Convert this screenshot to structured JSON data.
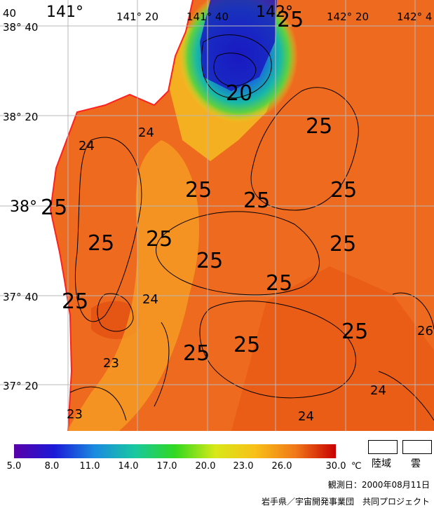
{
  "map": {
    "lon_labels": [
      "141°",
      "141° 20",
      "141° 40",
      "142°",
      "142° 20",
      "142° 4"
    ],
    "lon_left_fragment": "40",
    "lat_labels": [
      "38° 40",
      "38° 20",
      "38°",
      "37° 40",
      "37° 20"
    ],
    "contour_labels": [
      {
        "text": "25",
        "big": true
      },
      {
        "text": "20",
        "big": true
      },
      {
        "text": "25",
        "big": true
      },
      {
        "text": "24",
        "big": false
      },
      {
        "text": "24",
        "big": false
      },
      {
        "text": "25",
        "big": true
      },
      {
        "text": "25",
        "big": true
      },
      {
        "text": "25",
        "big": true
      },
      {
        "text": "25",
        "big": true
      },
      {
        "text": "25",
        "big": true
      },
      {
        "text": "25",
        "big": true
      },
      {
        "text": "25",
        "big": true
      },
      {
        "text": "25",
        "big": true
      },
      {
        "text": "25",
        "big": true
      },
      {
        "text": "25",
        "big": true
      },
      {
        "text": "25",
        "big": true
      },
      {
        "text": "24",
        "big": false
      },
      {
        "text": "25",
        "big": true
      },
      {
        "text": "25",
        "big": true
      },
      {
        "text": "26",
        "big": false
      },
      {
        "text": "23",
        "big": false
      },
      {
        "text": "24",
        "big": false
      },
      {
        "text": "23",
        "big": false
      },
      {
        "text": "24",
        "big": false
      }
    ],
    "colors": {
      "ocean": "#ee6a1e",
      "ocean_warm": "#e8520f",
      "nearshore": "#f4a020",
      "land": "#ffffff",
      "coast": "#ff2020",
      "grid": "#b8b8b8"
    }
  },
  "legend": {
    "ticks": [
      "5.0",
      "8.0",
      "11.0",
      "14.0",
      "17.0",
      "20.0",
      "23.0",
      "26.0",
      "30.0"
    ],
    "unit": "℃",
    "land_label": "陸域",
    "cloud_label": "雲",
    "stops": [
      "#5a00a8",
      "#1a1ad8",
      "#1a8ae0",
      "#18c8a0",
      "#30d820",
      "#d8e818",
      "#f8c018",
      "#f07818",
      "#c80000"
    ]
  },
  "observation": "観測日：2000年08月11日",
  "credit": "岩手県／宇宙開発事業団　共同プロジェクト"
}
